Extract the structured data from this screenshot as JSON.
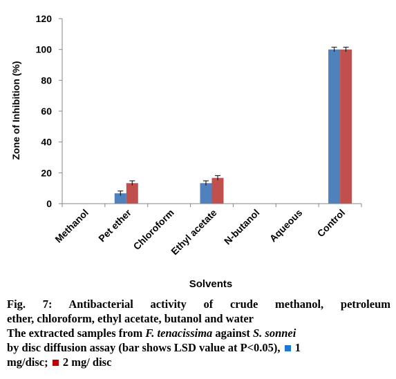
{
  "chart_data": {
    "type": "bar",
    "ylabel": "Zone of Inhibition (%)",
    "xlabel": "Solvents",
    "ylim": [
      0,
      120
    ],
    "yticks": [
      0,
      20,
      40,
      60,
      80,
      100,
      120
    ],
    "categories": [
      "Methanol",
      "Pet ether",
      "Chloroform",
      "Ethyl acetate",
      "N-butanol",
      "Aqueous",
      "Control"
    ],
    "series": [
      {
        "color": "#4F81BD",
        "values": [
          0,
          6.7,
          0,
          13.3,
          0,
          0,
          100
        ],
        "errors": [
          0,
          1.5,
          0,
          1.5,
          0,
          0,
          1.5
        ]
      },
      {
        "color": "#C0504D",
        "values": [
          0,
          13.3,
          0,
          16.7,
          0,
          0,
          100
        ],
        "errors": [
          0,
          1.5,
          0,
          1.5,
          0,
          0,
          1.5
        ]
      }
    ],
    "grid": false,
    "legend": "none"
  },
  "caption": {
    "line1": "Fig. 7: Antibacterial activity of crude methanol, petroleum",
    "line2": "ether, chloroform, ethyl acetate, butanol and water",
    "line3_a": "The extracted samples from ",
    "line3_species": "F. tenacissima",
    "line3_b": " against ",
    "line3_bacteria": "S. sonnei",
    "line4_a": "by disc diffusion assay (bar shows LSD value at P<0.05), ",
    "legend1": "1",
    "line5_a": "mg/disc; ",
    "legend2": "2 mg/ disc",
    "legend1_color": "#1F77D0",
    "legend2_color": "#C00000"
  }
}
